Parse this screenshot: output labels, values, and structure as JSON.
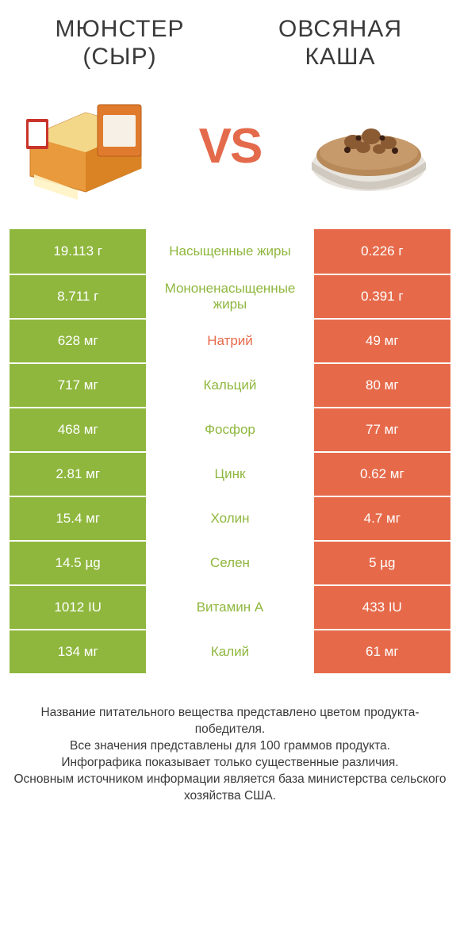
{
  "colors": {
    "green": "#8fb73e",
    "orange": "#e66a4a",
    "white": "#ffffff",
    "rowBorder": "#ffffff",
    "text": "#3a3a3a"
  },
  "titles": {
    "left_line1": "Мюнстер",
    "left_line2": "(сыр)",
    "right_line1": "Овсяная",
    "right_line2": "каша"
  },
  "vs_label": "VS",
  "rows": [
    {
      "left": "19.113 г",
      "mid": "Насыщенные жиры",
      "right": "0.226 г",
      "winner": "left"
    },
    {
      "left": "8.711 г",
      "mid": "Мононенасыщенные жиры",
      "right": "0.391 г",
      "winner": "left"
    },
    {
      "left": "628 мг",
      "mid": "Натрий",
      "right": "49 мг",
      "winner": "right"
    },
    {
      "left": "717 мг",
      "mid": "Кальций",
      "right": "80 мг",
      "winner": "left"
    },
    {
      "left": "468 мг",
      "mid": "Фосфор",
      "right": "77 мг",
      "winner": "left"
    },
    {
      "left": "2.81 мг",
      "mid": "Цинк",
      "right": "0.62 мг",
      "winner": "left"
    },
    {
      "left": "15.4 мг",
      "mid": "Холин",
      "right": "4.7 мг",
      "winner": "left"
    },
    {
      "left": "14.5 µg",
      "mid": "Селен",
      "right": "5 µg",
      "winner": "left"
    },
    {
      "left": "1012 IU",
      "mid": "Витамин A",
      "right": "433 IU",
      "winner": "left"
    },
    {
      "left": "134 мг",
      "mid": "Калий",
      "right": "61 мг",
      "winner": "left"
    }
  ],
  "footer": {
    "line1": "Название питательного вещества представлено цветом продукта-победителя.",
    "line2": "Все значения представлены для 100 граммов продукта.",
    "line3": "Инфографика показывает только существенные различия.",
    "line4": "Основным источником информации является база министерства сельского хозяйства США."
  }
}
